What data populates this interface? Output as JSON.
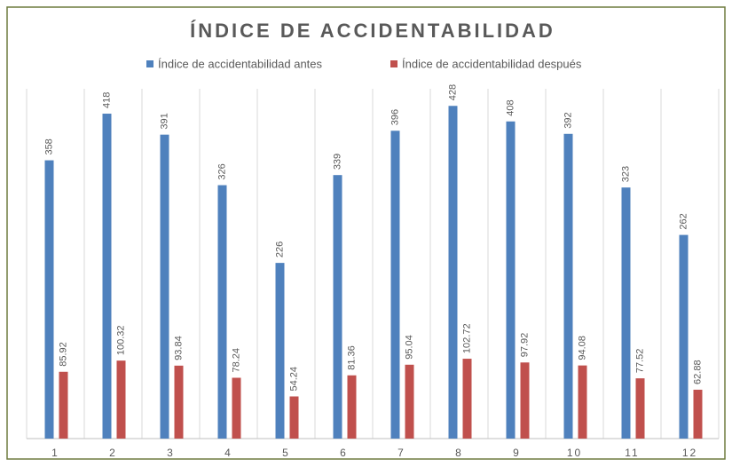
{
  "chart_data": {
    "type": "bar",
    "title": "ÍNDICE DE ACCIDENTABILIDAD",
    "categories": [
      "1",
      "2",
      "3",
      "4",
      "5",
      "6",
      "7",
      "8",
      "9",
      "10",
      "11",
      "12"
    ],
    "series": [
      {
        "name": "Índice de accidentabilidad antes",
        "color": "#4f81bd",
        "values": [
          358,
          418,
          391,
          326,
          226,
          339,
          396,
          428,
          408,
          392,
          323,
          262
        ]
      },
      {
        "name": "Índice de accidentabilidad después",
        "color": "#c0504d",
        "values": [
          85.92,
          100.32,
          93.84,
          78.24,
          54.24,
          81.36,
          95.04,
          102.72,
          97.92,
          94.08,
          77.52,
          62.88
        ]
      }
    ],
    "ylim": [
      0,
      450
    ],
    "grid": true,
    "legend": "top"
  }
}
